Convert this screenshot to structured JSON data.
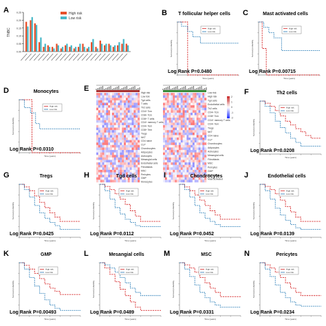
{
  "colors": {
    "high_risk": "#d62728",
    "low_risk": "#1f77b4",
    "bar_high": "#e8502a",
    "bar_low": "#49b8c8"
  },
  "panel_A": {
    "letter": "A",
    "legend": [
      "High risk",
      "Low risk"
    ],
    "ylabel": "TNBC",
    "yticks": [
      "0.25",
      "0.20",
      "0.15",
      "0.10",
      "0.05",
      "0.00"
    ]
  },
  "panel_E": {
    "letter": "E",
    "left_labels": [
      "High risk",
      "Low risk",
      "Tgd cells",
      "T cells",
      "Th2 cells",
      "CD4+ Tcm",
      "CD8+ Tcm",
      "CD8+ T cells",
      "CD4+ memory T cells",
      "CD4+ Tem",
      "CD8+ Tem",
      "Tregs",
      "NKT",
      "CD4 naive",
      "CLP",
      "Chondrocytes",
      "Adipocytes",
      "Astrocytes",
      "Mesangial cells",
      "Endothelial cells",
      "Fibroblasts",
      "MSC",
      "Pericytes",
      "GMP",
      "Monocytes"
    ],
    "right_labels": [
      "Low risk",
      "High risk",
      "Tgd cells",
      "Endothelial cells",
      "Th2 cells",
      "CD4+ Tcm",
      "CD8+ Tcm",
      "CD4+ memory T cells",
      "CD4+ Tem",
      "Tregs",
      "NKT",
      "CD4 naive",
      "CLP",
      "Chondrocytes",
      "Adipocytes",
      "Astrocytes",
      "Mesangial cells",
      "Fibroblasts",
      "MSC",
      "Pericytes",
      "GMP",
      "Monocytes",
      "Mast activated"
    ],
    "scale_ticks": [
      "2",
      "1",
      "0",
      "-1",
      "-2"
    ]
  },
  "km_common": {
    "legend": [
      "High risk",
      "Low risk"
    ],
    "xlabel": "Time (years)",
    "ylabel": "Survival probability"
  },
  "km_panels": [
    {
      "letter": "B",
      "title": "T follicular helper cells",
      "stat": "Log Rank P=0.0480"
    },
    {
      "letter": "C",
      "title": "Mast activated cells",
      "stat": "Log Rank P=0.00715"
    },
    {
      "letter": "D",
      "title": "Monocytes",
      "stat": "Log Rank P=0.0310"
    },
    {
      "letter": "F",
      "title": "Th2 cells",
      "stat": "Log Rank P=0.0208"
    },
    {
      "letter": "G",
      "title": "Tregs",
      "stat": "Log Rank P=0.0425"
    },
    {
      "letter": "H",
      "title": "Tgd cells",
      "stat": "Log Rank P=0.0112"
    },
    {
      "letter": "I",
      "title": "Chondrocytes",
      "stat": "Log Rank P=0.0452"
    },
    {
      "letter": "J",
      "title": "Endothelial cells",
      "stat": "Log Rank P=0.0139"
    },
    {
      "letter": "K",
      "title": "GMP",
      "stat": "Log Rank P=0.00493"
    },
    {
      "letter": "L",
      "title": "Mesangial cells",
      "stat": "Log Rank P=0.0489"
    },
    {
      "letter": "M",
      "title": "MSC",
      "stat": "Log Rank P=0.0331"
    },
    {
      "letter": "N",
      "title": "Pericytes",
      "stat": "Log Rank P=0.0234"
    }
  ],
  "chart_data": [
    {
      "panel": "A",
      "type": "bar",
      "categories": [
        "",
        "",
        "",
        "",
        "",
        "",
        "",
        "",
        "",
        "",
        "",
        "",
        "",
        "",
        "",
        "",
        "",
        "",
        "",
        "",
        "",
        "",
        "",
        ""
      ],
      "series": [
        {
          "name": "High risk",
          "values": [
            0.19,
            0.2,
            0.18,
            0.06,
            0.03,
            0.04,
            0.03,
            0.05,
            0.02,
            0.04,
            0.03,
            0.02,
            0.03,
            0.05,
            0.02,
            0.06,
            0.03,
            0.07,
            0.04,
            0.05,
            0.03,
            0.04,
            0.05,
            0.05
          ]
        },
        {
          "name": "Low risk",
          "values": [
            0.16,
            0.22,
            0.17,
            0.09,
            0.05,
            0.03,
            0.02,
            0.04,
            0.03,
            0.05,
            0.04,
            0.03,
            0.05,
            0.03,
            0.03,
            0.08,
            0.02,
            0.05,
            0.05,
            0.04,
            0.04,
            0.06,
            0.08,
            0.04
          ]
        }
      ],
      "ylim": [
        0,
        0.25
      ]
    },
    {
      "panel": "B",
      "type": "line",
      "xlim": [
        0,
        12
      ],
      "ylim": [
        0,
        1
      ],
      "series": [
        {
          "name": "High risk",
          "x": [
            0,
            2.0,
            2.0,
            3.5,
            3.5,
            12
          ],
          "y": [
            1,
            1,
            0.0,
            0.0,
            0.0,
            0.0
          ]
        },
        {
          "name": "Low risk",
          "x": [
            0,
            0.8,
            0.8,
            2.0,
            2.0,
            3.0,
            3.0,
            4.5,
            4.5,
            12
          ],
          "y": [
            1,
            1,
            0.92,
            0.92,
            0.82,
            0.82,
            0.72,
            0.72,
            0.6,
            0.6
          ]
        }
      ]
    },
    {
      "panel": "C",
      "type": "line",
      "xlim": [
        0,
        12
      ],
      "ylim": [
        0,
        1
      ],
      "series": [
        {
          "name": "High risk",
          "x": [
            0,
            0.7,
            0.7,
            1.5,
            1.5,
            12
          ],
          "y": [
            1,
            1,
            0.5,
            0.5,
            0.0,
            0.0
          ]
        },
        {
          "name": "Low risk",
          "x": [
            0,
            1.0,
            1.0,
            2.0,
            2.0,
            3.0,
            3.0,
            4.5,
            4.5,
            12
          ],
          "y": [
            1,
            1,
            0.9,
            0.9,
            0.8,
            0.8,
            0.7,
            0.7,
            0.46,
            0.46
          ]
        }
      ]
    },
    {
      "panel": "D",
      "type": "line",
      "xlim": [
        0,
        12
      ],
      "ylim": [
        0,
        1
      ],
      "series": [
        {
          "name": "High risk",
          "x": [
            0,
            2.5,
            2.5,
            12
          ],
          "y": [
            1,
            1,
            0.0,
            0.0
          ]
        },
        {
          "name": "Low risk",
          "x": [
            0,
            1.0,
            1.0,
            2.2,
            2.2,
            3.2,
            3.2,
            4.0,
            4.0,
            12
          ],
          "y": [
            1,
            1,
            0.85,
            0.85,
            0.75,
            0.75,
            0.55,
            0.55,
            0.45,
            0.45
          ]
        }
      ]
    },
    {
      "panel": "F",
      "type": "line",
      "xlim": [
        0,
        12
      ],
      "ylim": [
        0,
        1
      ],
      "series": [
        {
          "name": "High risk",
          "x": [
            0,
            1,
            2,
            3,
            4,
            5,
            6,
            7,
            8,
            9,
            10,
            12
          ],
          "y": [
            1,
            0.96,
            0.9,
            0.82,
            0.72,
            0.62,
            0.55,
            0.48,
            0.42,
            0.35,
            0.3,
            0.3
          ]
        },
        {
          "name": "Low risk",
          "x": [
            0,
            1,
            2,
            3,
            4,
            5,
            6,
            7,
            8,
            12
          ],
          "y": [
            1,
            0.9,
            0.78,
            0.62,
            0.5,
            0.4,
            0.3,
            0.22,
            0.15,
            0.15
          ]
        }
      ]
    },
    {
      "panel": "G",
      "type": "line",
      "xlim": [
        0,
        12
      ],
      "ylim": [
        0,
        1
      ],
      "series": [
        {
          "name": "High risk",
          "x": [
            0,
            1,
            2,
            3,
            4,
            5,
            6,
            7,
            8,
            12
          ],
          "y": [
            1,
            0.95,
            0.88,
            0.78,
            0.66,
            0.56,
            0.46,
            0.38,
            0.3,
            0.3
          ]
        },
        {
          "name": "Low risk",
          "x": [
            0,
            1,
            2,
            3,
            4,
            5,
            6,
            7,
            8,
            12
          ],
          "y": [
            1,
            0.9,
            0.76,
            0.6,
            0.46,
            0.36,
            0.28,
            0.22,
            0.15,
            0.15
          ]
        }
      ]
    },
    {
      "panel": "H",
      "type": "line",
      "xlim": [
        0,
        12
      ],
      "ylim": [
        0,
        1
      ],
      "series": [
        {
          "name": "High risk",
          "x": [
            0,
            1,
            2,
            3,
            4,
            5,
            6,
            7,
            8,
            12
          ],
          "y": [
            1,
            0.96,
            0.9,
            0.82,
            0.72,
            0.62,
            0.5,
            0.4,
            0.3,
            0.3
          ]
        },
        {
          "name": "Low risk",
          "x": [
            0,
            1,
            2,
            3,
            4,
            5,
            6,
            7,
            8,
            12
          ],
          "y": [
            1,
            0.88,
            0.72,
            0.56,
            0.44,
            0.34,
            0.28,
            0.22,
            0.2,
            0.2
          ]
        }
      ]
    },
    {
      "panel": "I",
      "type": "line",
      "xlim": [
        0,
        12
      ],
      "ylim": [
        0,
        1
      ],
      "series": [
        {
          "name": "High risk",
          "x": [
            0,
            1,
            2,
            3,
            4,
            5,
            6,
            7,
            8,
            12
          ],
          "y": [
            1,
            0.95,
            0.88,
            0.8,
            0.7,
            0.6,
            0.5,
            0.42,
            0.34,
            0.34
          ]
        },
        {
          "name": "Low risk",
          "x": [
            0,
            1,
            2,
            3,
            4,
            5,
            6,
            7,
            8,
            12
          ],
          "y": [
            1,
            0.9,
            0.76,
            0.6,
            0.46,
            0.36,
            0.3,
            0.24,
            0.2,
            0.2
          ]
        }
      ]
    },
    {
      "panel": "J",
      "type": "line",
      "xlim": [
        0,
        12
      ],
      "ylim": [
        0,
        1
      ],
      "series": [
        {
          "name": "High risk",
          "x": [
            0,
            1,
            2,
            3,
            4,
            5,
            6,
            7,
            8,
            12
          ],
          "y": [
            1,
            0.96,
            0.9,
            0.82,
            0.7,
            0.58,
            0.48,
            0.38,
            0.3,
            0.3
          ]
        },
        {
          "name": "Low risk",
          "x": [
            0,
            1,
            2,
            3,
            4,
            5,
            6,
            7,
            8,
            12
          ],
          "y": [
            1,
            0.88,
            0.72,
            0.55,
            0.42,
            0.32,
            0.24,
            0.18,
            0.15,
            0.15
          ]
        }
      ]
    },
    {
      "panel": "K",
      "type": "line",
      "xlim": [
        0,
        12
      ],
      "ylim": [
        0,
        1
      ],
      "series": [
        {
          "name": "High risk",
          "x": [
            0,
            1,
            2,
            3,
            4,
            5,
            6,
            7,
            8,
            12
          ],
          "y": [
            1,
            0.95,
            0.88,
            0.8,
            0.7,
            0.6,
            0.52,
            0.46,
            0.4,
            0.4
          ]
        },
        {
          "name": "Low risk",
          "x": [
            0,
            1,
            2,
            3,
            4,
            5,
            6,
            7,
            8,
            12
          ],
          "y": [
            1,
            0.88,
            0.72,
            0.56,
            0.42,
            0.3,
            0.2,
            0.14,
            0.1,
            0.1
          ]
        }
      ]
    },
    {
      "panel": "L",
      "type": "line",
      "xlim": [
        0,
        12
      ],
      "ylim": [
        0,
        1
      ],
      "series": [
        {
          "name": "High risk",
          "x": [
            0,
            1,
            2,
            3,
            4,
            5,
            6,
            7,
            8,
            12
          ],
          "y": [
            1,
            0.9,
            0.78,
            0.64,
            0.5,
            0.38,
            0.26,
            0.16,
            0.1,
            0.1
          ]
        },
        {
          "name": "Low risk",
          "x": [
            0,
            1,
            2,
            3,
            4,
            5,
            6,
            7,
            8,
            12
          ],
          "y": [
            1,
            0.96,
            0.9,
            0.82,
            0.72,
            0.62,
            0.52,
            0.44,
            0.38,
            0.38
          ]
        }
      ]
    },
    {
      "panel": "M",
      "type": "line",
      "xlim": [
        0,
        12
      ],
      "ylim": [
        0,
        1
      ],
      "series": [
        {
          "name": "High risk",
          "x": [
            0,
            1,
            2,
            3,
            4,
            5,
            6,
            7,
            8,
            12
          ],
          "y": [
            1,
            0.96,
            0.9,
            0.82,
            0.72,
            0.62,
            0.52,
            0.44,
            0.36,
            0.36
          ]
        },
        {
          "name": "Low risk",
          "x": [
            0,
            1,
            2,
            3,
            4,
            5,
            6,
            7,
            8,
            12
          ],
          "y": [
            1,
            0.88,
            0.74,
            0.58,
            0.44,
            0.34,
            0.26,
            0.2,
            0.16,
            0.16
          ]
        }
      ]
    },
    {
      "panel": "N",
      "type": "line",
      "xlim": [
        0,
        12
      ],
      "ylim": [
        0,
        1
      ],
      "series": [
        {
          "name": "High risk",
          "x": [
            0,
            1,
            2,
            3,
            4,
            5,
            6,
            7,
            8,
            12
          ],
          "y": [
            1,
            0.96,
            0.9,
            0.82,
            0.72,
            0.62,
            0.52,
            0.44,
            0.38,
            0.38
          ]
        },
        {
          "name": "Low risk",
          "x": [
            0,
            1,
            2,
            3,
            4,
            5,
            6,
            7,
            8,
            12
          ],
          "y": [
            1,
            0.88,
            0.74,
            0.58,
            0.44,
            0.34,
            0.26,
            0.2,
            0.18,
            0.18
          ]
        }
      ]
    }
  ]
}
